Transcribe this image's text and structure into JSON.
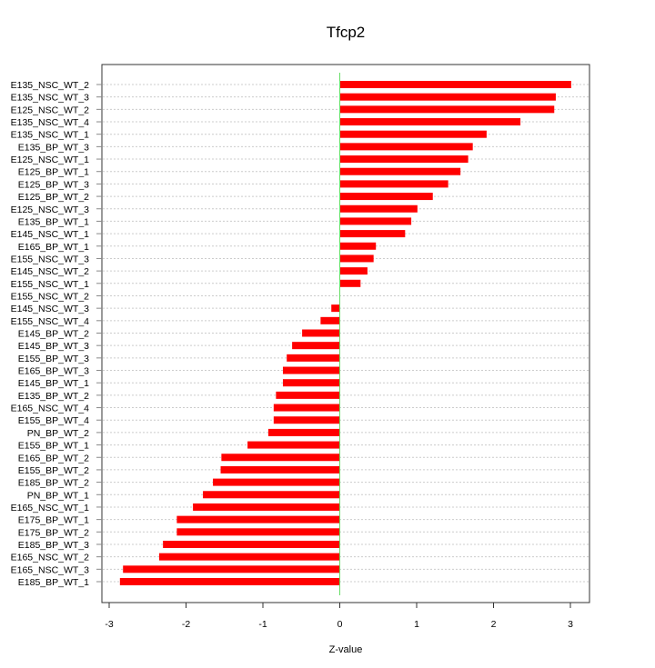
{
  "chart_data": {
    "type": "bar",
    "orientation": "horizontal",
    "title": "Tfcp2",
    "xlabel": "Z-value",
    "ylabel": "",
    "xlim": [
      -3.1,
      3.25
    ],
    "xticks": [
      -3,
      -2,
      -1,
      0,
      1,
      2,
      3
    ],
    "grid": "horizontal dotted",
    "colors": {
      "bar": "#ff0000",
      "zero_line": "#66dd66",
      "grid": "#cccccc"
    },
    "categories": [
      "E135_NSC_WT_2",
      "E135_NSC_WT_3",
      "E125_NSC_WT_2",
      "E135_NSC_WT_4",
      "E135_NSC_WT_1",
      "E135_BP_WT_3",
      "E125_NSC_WT_1",
      "E125_BP_WT_1",
      "E125_BP_WT_3",
      "E125_BP_WT_2",
      "E125_NSC_WT_3",
      "E135_BP_WT_1",
      "E145_NSC_WT_1",
      "E165_BP_WT_1",
      "E155_NSC_WT_3",
      "E145_NSC_WT_2",
      "E155_NSC_WT_1",
      "E155_NSC_WT_2",
      "E145_NSC_WT_3",
      "E155_NSC_WT_4",
      "E145_BP_WT_2",
      "E145_BP_WT_3",
      "E155_BP_WT_3",
      "E165_BP_WT_3",
      "E145_BP_WT_1",
      "E135_BP_WT_2",
      "E165_NSC_WT_4",
      "E155_BP_WT_4",
      "PN_BP_WT_2",
      "E155_BP_WT_1",
      "E165_BP_WT_2",
      "E155_BP_WT_2",
      "E185_BP_WT_2",
      "PN_BP_WT_1",
      "E165_NSC_WT_1",
      "E175_BP_WT_1",
      "E175_BP_WT_2",
      "E185_BP_WT_3",
      "E165_NSC_WT_2",
      "E165_NSC_WT_3",
      "E185_BP_WT_1"
    ],
    "values": [
      3.01,
      2.81,
      2.79,
      2.35,
      1.91,
      1.73,
      1.67,
      1.57,
      1.41,
      1.21,
      1.01,
      0.93,
      0.85,
      0.47,
      0.44,
      0.36,
      0.27,
      0.0,
      -0.11,
      -0.25,
      -0.49,
      -0.62,
      -0.69,
      -0.74,
      -0.74,
      -0.83,
      -0.86,
      -0.86,
      -0.93,
      -1.2,
      -1.54,
      -1.55,
      -1.65,
      -1.78,
      -1.91,
      -2.12,
      -2.12,
      -2.3,
      -2.35,
      -2.82,
      -2.86
    ]
  }
}
